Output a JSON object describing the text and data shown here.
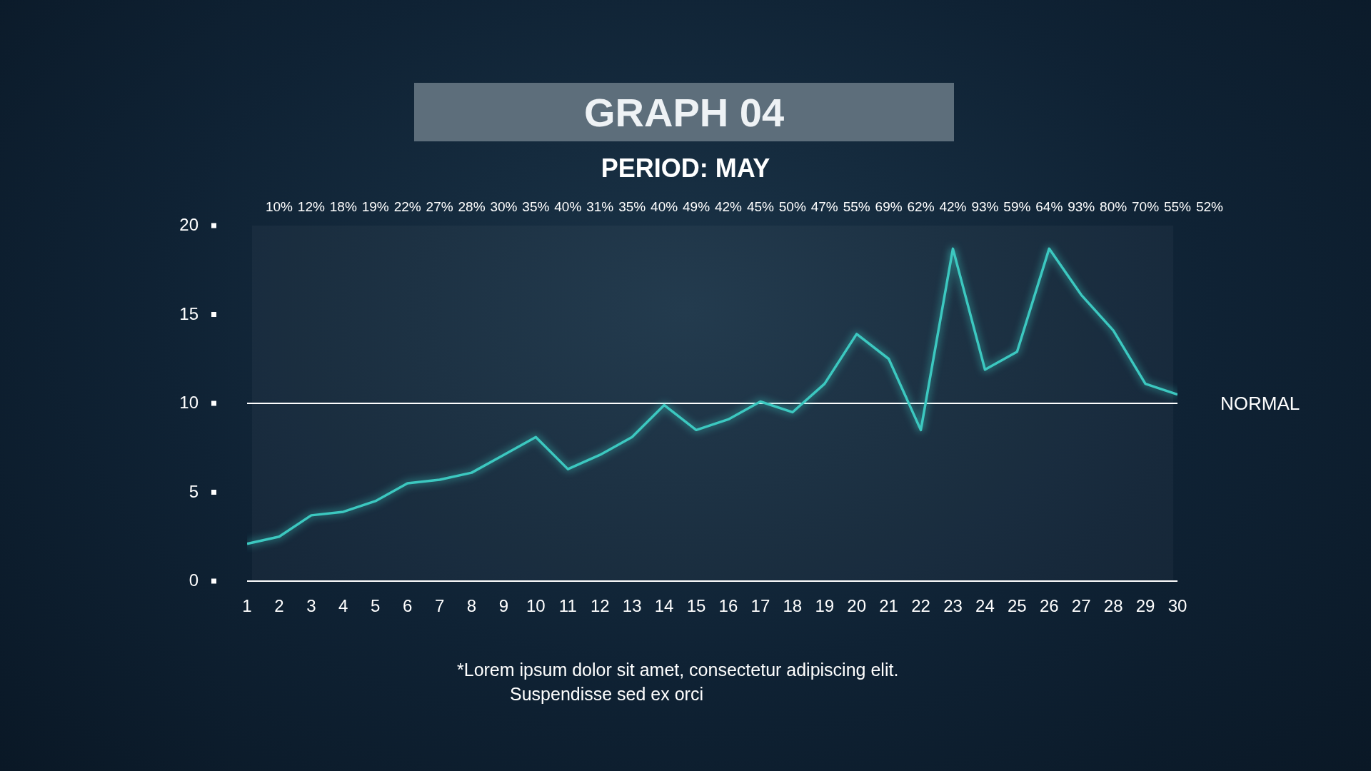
{
  "chart_data": {
    "type": "line",
    "title": "GRAPH 04",
    "subtitle": "PERIOD: MAY",
    "x": [
      1,
      2,
      3,
      4,
      5,
      6,
      7,
      8,
      9,
      10,
      11,
      12,
      13,
      14,
      15,
      16,
      17,
      18,
      19,
      20,
      21,
      22,
      23,
      24,
      25,
      26,
      27,
      28,
      29,
      30
    ],
    "values": [
      2.1,
      2.5,
      3.7,
      3.9,
      4.5,
      5.5,
      5.7,
      6.1,
      7.1,
      8.1,
      6.3,
      7.1,
      8.1,
      9.9,
      8.5,
      9.1,
      10.1,
      9.5,
      11.1,
      13.9,
      12.5,
      8.5,
      18.7,
      11.9,
      12.9,
      18.7,
      16.1,
      14.1,
      11.1,
      10.5
    ],
    "color": "#3cc8c0",
    "xlim": [
      1,
      30
    ],
    "xticks": [
      1,
      2,
      3,
      4,
      5,
      6,
      7,
      8,
      9,
      10,
      11,
      12,
      13,
      14,
      15,
      16,
      17,
      18,
      19,
      20,
      21,
      22,
      23,
      24,
      25,
      26,
      27,
      28,
      29,
      30
    ],
    "ylim": [
      0,
      20
    ],
    "yticks": [
      0,
      5,
      10,
      15,
      20
    ],
    "ref_lines": [
      {
        "axis": "y",
        "value": 10,
        "label": "NORMAL",
        "color": "#ffffff"
      }
    ],
    "annotations": [
      "10%",
      "12%",
      "18%",
      "19%",
      "22%",
      "27%",
      "28%",
      "30%",
      "35%",
      "40%",
      "31%",
      "35%",
      "40%",
      "49%",
      "42%",
      "45%",
      "50%",
      "47%",
      "55%",
      "69%",
      "62%",
      "42%",
      "93%",
      "59%",
      "64%",
      "93%",
      "80%",
      "70%",
      "55%",
      "52%",
      "*Lorem ipsum dolor sit amet, consectetur adipiscing elit.",
      "Suspendisse sed ex orci"
    ]
  }
}
